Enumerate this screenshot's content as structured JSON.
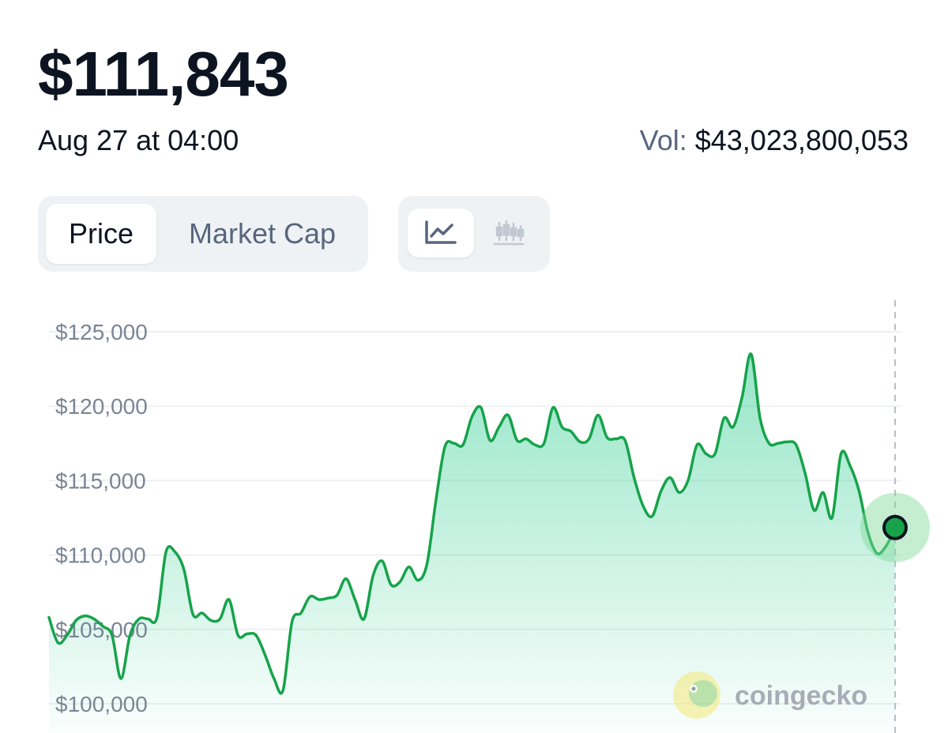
{
  "header": {
    "price": "$111,843",
    "timestamp": "Aug 27 at 04:00",
    "volume_label": "Vol:",
    "volume_value": "$43,023,800,053"
  },
  "tabs": [
    {
      "label": "Price",
      "active": true
    },
    {
      "label": "Market Cap",
      "active": false
    }
  ],
  "chart_type_toggle": [
    {
      "icon": "line-chart-icon",
      "active": true
    },
    {
      "icon": "candlestick-chart-icon",
      "active": false
    }
  ],
  "watermark": {
    "text": "coingecko",
    "logo_icon": "gecko-logo-icon"
  },
  "colors": {
    "line": "#16a34a",
    "fill_top": "#16c784",
    "marker": "#16a34a",
    "marker_halo": "#7ed99a",
    "grid": "#eef0f3",
    "tick_text": "#7a8595"
  },
  "chart_data": {
    "type": "area",
    "title": "",
    "xlabel": "",
    "ylabel": "",
    "ylim": [
      98500,
      127000
    ],
    "y_ticks": [
      {
        "value": 125000,
        "label": "$125,000"
      },
      {
        "value": 120000,
        "label": "$120,000"
      },
      {
        "value": 115000,
        "label": "$115,000"
      },
      {
        "value": 110000,
        "label": "$110,000"
      },
      {
        "value": 105000,
        "label": "$105,000"
      },
      {
        "value": 100000,
        "label": "$100,000"
      }
    ],
    "grid": true,
    "legend": "none",
    "series": [
      {
        "values": [
          105800,
          104100,
          104600,
          105600,
          105900,
          105700,
          105200,
          104600,
          101700,
          104600,
          105700,
          105700,
          105800,
          110200,
          110200,
          109000,
          106000,
          106100,
          105600,
          105700,
          107000,
          104600,
          104700,
          104600,
          103300,
          101700,
          100900,
          105500,
          106100,
          107200,
          107000,
          107100,
          107300,
          108400,
          107000,
          105700,
          108600,
          109600,
          108000,
          108200,
          109200,
          108300,
          109400,
          113700,
          117300,
          117500,
          117400,
          119300,
          119900,
          117700,
          118600,
          119400,
          117700,
          117800,
          117400,
          117500,
          119900,
          118600,
          118300,
          117600,
          117800,
          119400,
          117900,
          117800,
          117700,
          115200,
          113300,
          112600,
          114300,
          115200,
          114200,
          115000,
          117400,
          116800,
          116800,
          119200,
          118600,
          120600,
          123500,
          119200,
          117500,
          117500,
          117600,
          117400,
          115500,
          113000,
          114200,
          112500,
          116800,
          116000,
          114300,
          111500,
          110100,
          110600,
          111800
        ]
      }
    ],
    "current_point": {
      "value": 111843
    }
  }
}
